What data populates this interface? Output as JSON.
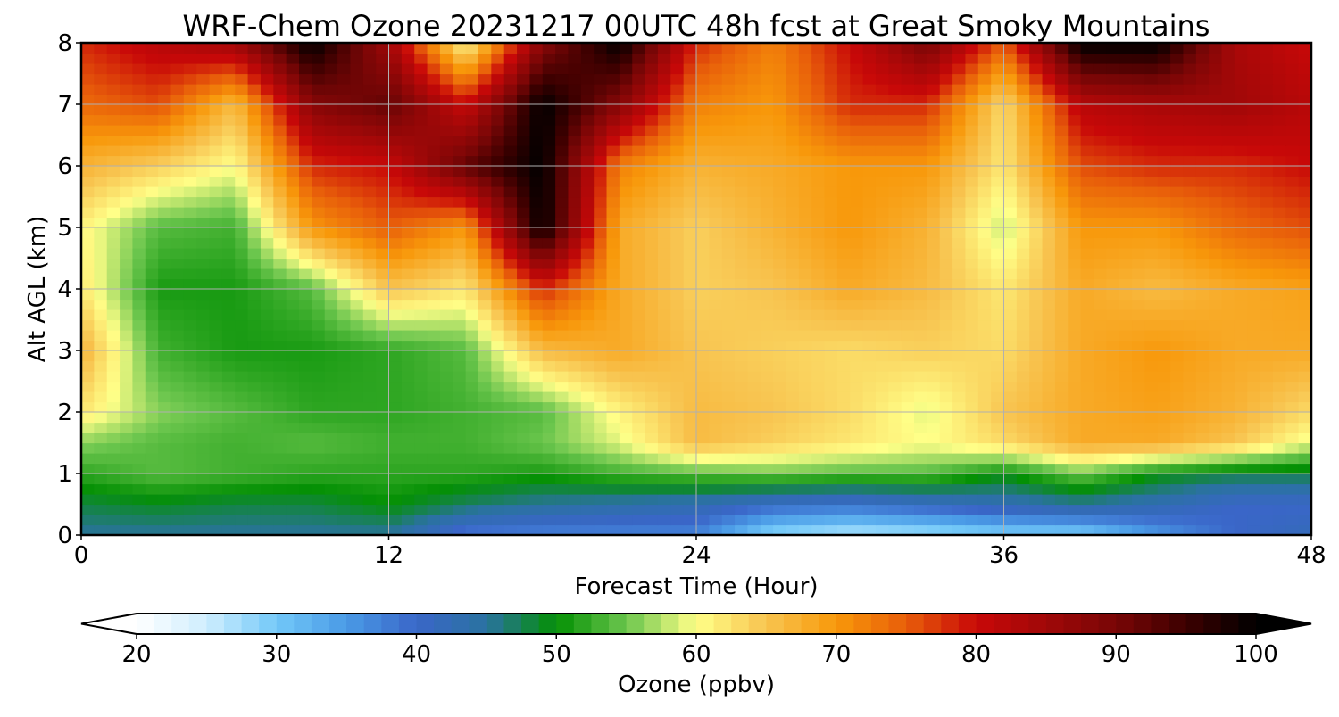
{
  "chart_data": {
    "type": "heatmap",
    "title": "WRF-Chem Ozone  20231217 00UTC 48h fcst at Great Smoky Mountains",
    "xlabel": "Forecast Time (Hour)",
    "ylabel": "Alt AGL (km)",
    "xlim": [
      0,
      48
    ],
    "ylim": [
      0,
      8
    ],
    "x_ticks": [
      0,
      12,
      24,
      36,
      48
    ],
    "y_ticks": [
      0,
      1,
      2,
      3,
      4,
      5,
      6,
      7,
      8
    ],
    "grid": true,
    "x": [
      0,
      3,
      6,
      9,
      12,
      15,
      18,
      21,
      24,
      27,
      30,
      33,
      36,
      39,
      42,
      45,
      48
    ],
    "y": [
      0,
      0.5,
      1,
      1.5,
      2,
      3,
      4,
      5,
      6,
      7,
      8
    ],
    "z": [
      [
        45,
        45,
        45,
        45,
        45,
        38,
        37,
        37,
        37,
        28,
        26,
        27,
        29,
        29,
        35,
        40,
        42
      ],
      [
        48,
        49,
        48,
        48,
        50,
        47,
        45,
        44,
        43,
        40,
        39,
        41,
        43,
        45,
        43,
        40,
        40
      ],
      [
        52,
        54,
        53,
        52,
        52,
        52,
        51,
        53,
        54,
        55,
        54,
        54,
        50,
        55,
        50,
        48,
        48
      ],
      [
        56,
        54,
        53,
        54,
        53,
        53,
        55,
        59,
        66,
        64,
        62,
        60,
        63,
        68,
        68,
        65,
        59
      ],
      [
        62,
        56,
        54,
        52,
        52,
        53,
        54,
        61,
        66,
        65,
        63,
        59,
        65,
        68,
        69,
        67,
        63
      ],
      [
        67,
        53,
        51,
        51,
        52,
        54,
        66,
        68,
        65,
        64,
        63,
        64,
        63,
        68,
        70,
        68,
        68
      ],
      [
        62,
        51,
        51,
        54,
        65,
        62,
        78,
        68,
        64,
        65,
        68,
        66,
        62,
        68,
        66,
        68,
        69
      ],
      [
        61,
        54,
        53,
        70,
        75,
        70,
        100,
        68,
        64,
        67,
        70,
        67,
        58,
        70,
        70,
        74,
        76
      ],
      [
        67,
        64,
        60,
        78,
        80,
        92,
        100,
        72,
        67,
        68,
        70,
        70,
        62,
        76,
        78,
        78,
        80
      ],
      [
        74,
        76,
        66,
        88,
        92,
        80,
        100,
        88,
        72,
        70,
        78,
        78,
        63,
        82,
        84,
        85,
        82
      ],
      [
        78,
        82,
        85,
        100,
        85,
        60,
        88,
        100,
        78,
        72,
        80,
        90,
        75,
        100,
        100,
        84,
        80
      ]
    ],
    "colorbar": {
      "label": "Ozone  (ppbv)",
      "min": 20,
      "max": 100,
      "ticks": [
        "20",
        "30",
        "40",
        "50",
        "60",
        "70",
        "80",
        "90",
        "100"
      ],
      "extend": "both",
      "stops": [
        [
          20,
          "#ffffff"
        ],
        [
          25,
          "#cfeefe"
        ],
        [
          30,
          "#72c8f8"
        ],
        [
          35,
          "#4a9ae6"
        ],
        [
          40,
          "#3a66c8"
        ],
        [
          45,
          "#2a72a0"
        ],
        [
          50,
          "#049004"
        ],
        [
          55,
          "#6cc64e"
        ],
        [
          60,
          "#ffff88"
        ],
        [
          65,
          "#f8c450"
        ],
        [
          70,
          "#f8980a"
        ],
        [
          75,
          "#e85e0a"
        ],
        [
          80,
          "#c80808"
        ],
        [
          85,
          "#a00808"
        ],
        [
          90,
          "#780606"
        ],
        [
          95,
          "#3c0000"
        ],
        [
          100,
          "#000000"
        ]
      ]
    }
  }
}
